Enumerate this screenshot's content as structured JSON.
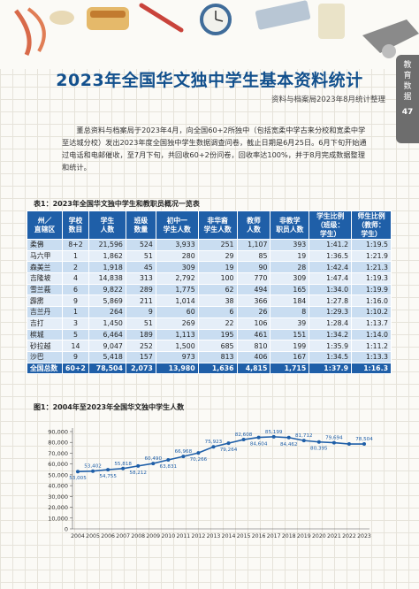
{
  "side_tab": {
    "lines": [
      "教",
      "育",
      "数",
      "据"
    ],
    "page_number": "47"
  },
  "title": "2023年全国华文独中学生基本资料统计",
  "subtitle": "资料与档案局2023年8月统计整理",
  "intro": "董总资料与档案局于2023年4月，向全国60+2所独中（包括宽柔中学古来分校和宽柔中学至达城分校）发出2023年度全国独中学生数据调查问卷，截止日期是6月25日。6月下旬开始通过电话和电邮催收，至7月下旬，共回收60+2份问卷，回收率达100%，并于8月完成数据整理和统计。",
  "table": {
    "caption": "表1：2023年全国华文独中学生和教职员概况一览表",
    "headers": [
      "州／\n直辖区",
      "学校\n数目",
      "学生\n人数",
      "班级\n数量",
      "初中一\n学生人数",
      "非华裔\n学生人数",
      "教师\n人数",
      "非教学\n职员人数",
      "学生比例\n（班级：\n学生）",
      "师生比例\n（教师：\n学生）"
    ],
    "rows": [
      [
        "柔佛",
        "8+2",
        "21,596",
        "524",
        "3,933",
        "251",
        "1,107",
        "393",
        "1:41.2",
        "1:19.5"
      ],
      [
        "马六甲",
        "1",
        "1,862",
        "51",
        "280",
        "29",
        "85",
        "19",
        "1:36.5",
        "1:21.9"
      ],
      [
        "森美兰",
        "2",
        "1,918",
        "45",
        "309",
        "19",
        "90",
        "28",
        "1:42.4",
        "1:21.3"
      ],
      [
        "吉隆坡",
        "4",
        "14,838",
        "313",
        "2,792",
        "100",
        "770",
        "309",
        "1:47.4",
        "1:19.3"
      ],
      [
        "雪兰莪",
        "6",
        "9,822",
        "289",
        "1,775",
        "62",
        "494",
        "165",
        "1:34.0",
        "1:19.9"
      ],
      [
        "霹雳",
        "9",
        "5,869",
        "211",
        "1,014",
        "38",
        "366",
        "184",
        "1:27.8",
        "1:16.0"
      ],
      [
        "吉兰丹",
        "1",
        "264",
        "9",
        "60",
        "6",
        "26",
        "8",
        "1:29.3",
        "1:10.2"
      ],
      [
        "吉打",
        "3",
        "1,450",
        "51",
        "269",
        "22",
        "106",
        "39",
        "1:28.4",
        "1:13.7"
      ],
      [
        "槟城",
        "5",
        "6,464",
        "189",
        "1,113",
        "195",
        "461",
        "151",
        "1:34.2",
        "1:14.0"
      ],
      [
        "砂拉越",
        "14",
        "9,047",
        "252",
        "1,500",
        "685",
        "810",
        "199",
        "1:35.9",
        "1:11.2"
      ],
      [
        "沙巴",
        "9",
        "5,418",
        "157",
        "973",
        "813",
        "406",
        "167",
        "1:34.5",
        "1:13.3"
      ]
    ],
    "total": [
      "全国总数",
      "60+2",
      "78,504",
      "2,073",
      "13,980",
      "1,636",
      "4,815",
      "1,715",
      "1:37.9",
      "1:16.3"
    ]
  },
  "chart_caption": "图1：2004年至2023年全国华文独中学生人数",
  "chart_data": {
    "type": "line",
    "x": [
      "2004",
      "2005",
      "2006",
      "2007",
      "2008",
      "2009",
      "2010",
      "2011",
      "2012",
      "2013",
      "2014",
      "2015",
      "2016",
      "2017",
      "2018",
      "2019",
      "2020",
      "2021",
      "2022",
      "2023"
    ],
    "values": [
      53005,
      53402,
      54755,
      55818,
      58212,
      60490,
      63831,
      66968,
      70266,
      75923,
      79264,
      82608,
      84604,
      85199,
      84462,
      81712,
      80395,
      79694,
      78504,
      78504
    ],
    "value_labels": [
      "53,005",
      "53,402",
      "54,755",
      "55,818",
      "58,212",
      "60,490",
      "63,831",
      "66,968",
      "70,266",
      "75,923",
      "79,264",
      "82,608",
      "84,604",
      "85,199",
      "84,462",
      "81,712",
      "80,395",
      "79,694",
      "",
      "78,504"
    ],
    "yticks": [
      "0",
      "10,000",
      "20,000",
      "30,000",
      "40,000",
      "50,000",
      "60,000",
      "70,000",
      "80,000",
      "90,000"
    ],
    "ylim": [
      0,
      90000
    ],
    "colors": {
      "line": "#1f5fa8",
      "point": "#1f5fa8",
      "label": "#1f5fa8"
    }
  }
}
